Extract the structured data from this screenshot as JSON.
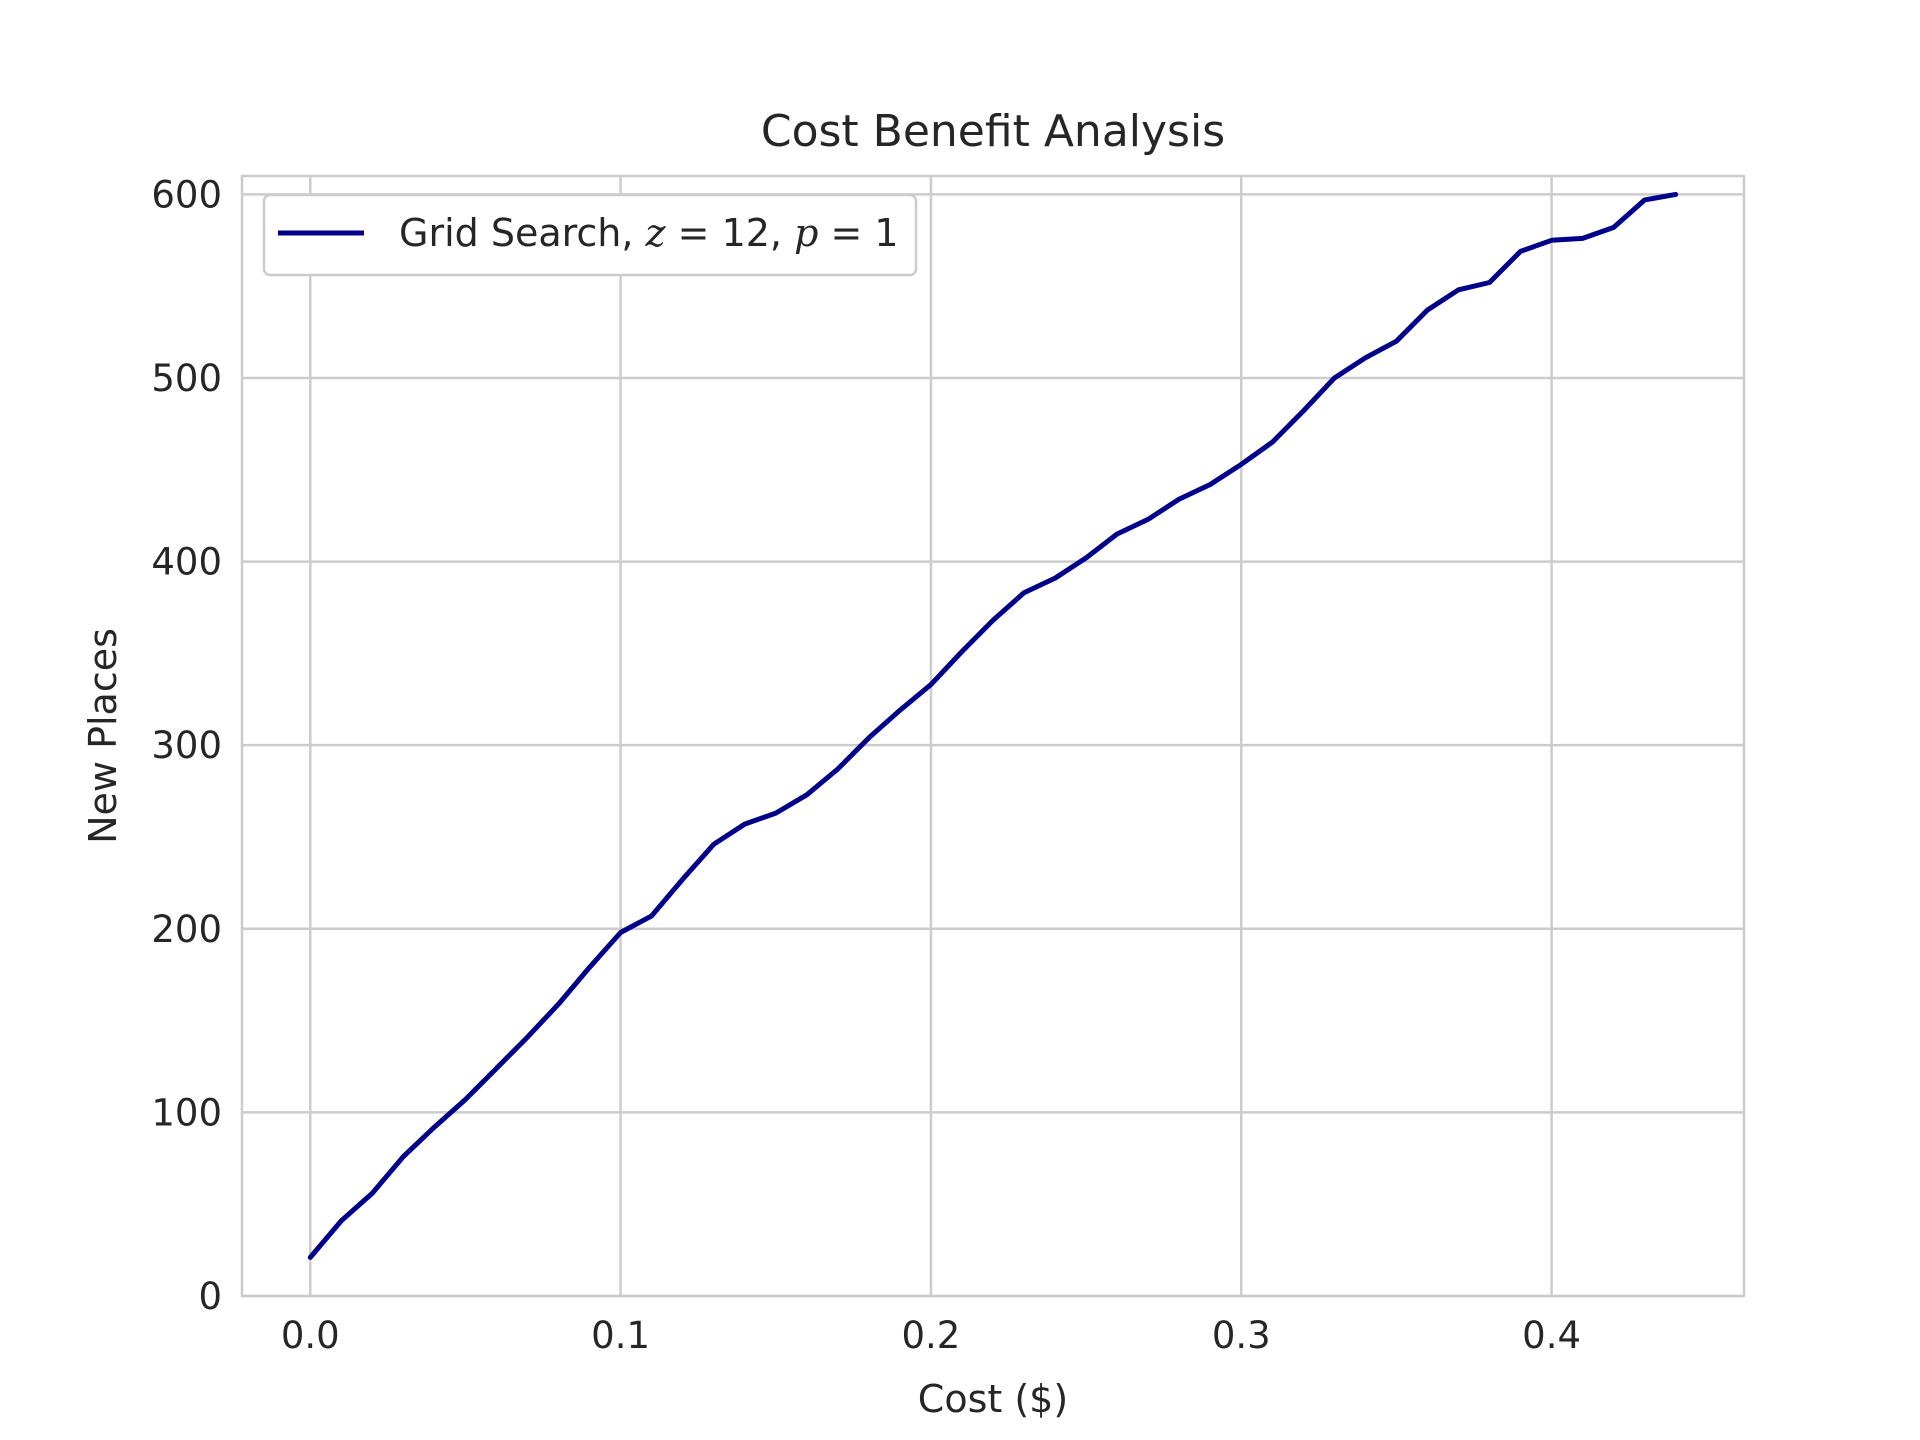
{
  "chart_data": {
    "type": "line",
    "title": "Cost Benefit Analysis",
    "xlabel": "Cost ($)",
    "ylabel": "New Places",
    "xlim": [
      -0.022,
      0.462
    ],
    "ylim": [
      0,
      610
    ],
    "xticks": [
      0.0,
      0.1,
      0.2,
      0.3,
      0.4
    ],
    "xtick_labels": [
      "0.0",
      "0.1",
      "0.2",
      "0.3",
      "0.4"
    ],
    "yticks": [
      0,
      100,
      200,
      300,
      400,
      500,
      600
    ],
    "ytick_labels": [
      "0",
      "100",
      "200",
      "300",
      "400",
      "500",
      "600"
    ],
    "grid": true,
    "legend_position": "top-left",
    "legend": {
      "prefix": "Grid Search, ",
      "math1": "z",
      "eq1": " = 12, ",
      "math2": "p",
      "eq2": " = 1"
    },
    "colors": {
      "line": "#00008b",
      "grid": "#cccccc",
      "axes": "#cccccc",
      "text": "#262626"
    },
    "series": [
      {
        "x": [
          0.0,
          0.01,
          0.02,
          0.03,
          0.04,
          0.05,
          0.06,
          0.07,
          0.08,
          0.09,
          0.1,
          0.11,
          0.12,
          0.13,
          0.14,
          0.15,
          0.16,
          0.17,
          0.18,
          0.19,
          0.2,
          0.21,
          0.22,
          0.23,
          0.24,
          0.25,
          0.26,
          0.27,
          0.28,
          0.29,
          0.3,
          0.31,
          0.32,
          0.33,
          0.34,
          0.35,
          0.36,
          0.37,
          0.38,
          0.39,
          0.4,
          0.41,
          0.42,
          0.43,
          0.44
        ],
        "y": [
          21,
          41,
          56,
          76,
          92,
          107,
          124,
          141,
          159,
          179,
          198,
          207,
          227,
          246,
          257,
          263,
          273,
          287,
          304,
          319,
          333,
          351,
          368,
          383,
          391,
          402,
          415,
          423,
          434,
          442,
          453,
          465,
          482,
          500,
          511,
          520,
          537,
          548,
          552,
          569,
          575,
          576,
          582,
          597,
          600
        ]
      }
    ]
  }
}
